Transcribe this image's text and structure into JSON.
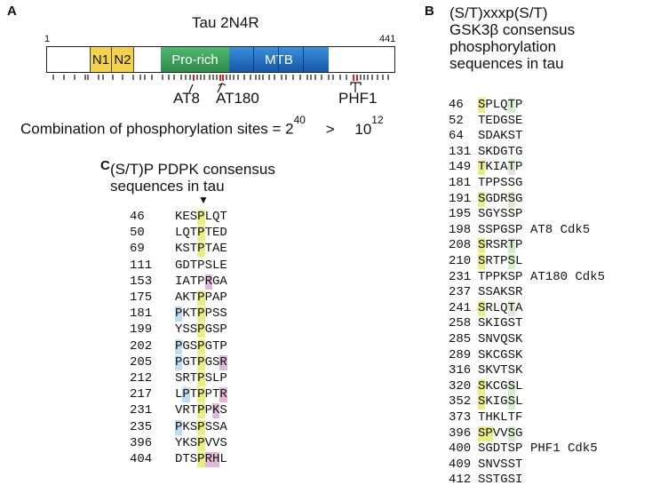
{
  "panelA": {
    "letter": "A",
    "title": "Tau 2N4R",
    "start": "1",
    "end": "441",
    "domains": [
      {
        "label": "N1",
        "color": "#f2d24c"
      },
      {
        "label": "N2",
        "color": "#f2d24c"
      },
      {
        "label": "Pro-rich",
        "color": "#3aa15a"
      },
      {
        "label": "MTB",
        "color": "#1f6fc0"
      }
    ],
    "epitopes": [
      "AT8",
      "AT180",
      "PHF1"
    ],
    "equation": {
      "text": "Combination of phosphorylation sites = 2",
      "exp1": "40",
      "gt": ">",
      "base2": "10",
      "exp2": "12"
    }
  },
  "panelB": {
    "letter": "B",
    "title_lines": [
      "(S/T)xxxp(S/T)",
      "GSK3β consensus",
      "phosphorylation",
      "sequences in tau"
    ],
    "rows": [
      {
        "num": "46",
        "seq": "SPLQTP",
        "hl": {
          "0": "y",
          "4": "g"
        },
        "note": ""
      },
      {
        "num": "52",
        "seq": "TEDGSE",
        "hl": {},
        "note": ""
      },
      {
        "num": "64",
        "seq": "SDAKST",
        "hl": {},
        "note": ""
      },
      {
        "num": "131",
        "seq": "SKDGTG",
        "hl": {},
        "note": ""
      },
      {
        "num": "149",
        "seq": "TKIATP",
        "hl": {
          "0": "y",
          "4": "g"
        },
        "note": ""
      },
      {
        "num": "181",
        "seq": "TPPSSG",
        "hl": {},
        "note": ""
      },
      {
        "num": "191",
        "seq": "SGDRSG",
        "hl": {
          "0": "y",
          "4": "g"
        },
        "note": ""
      },
      {
        "num": "195",
        "seq": "SGYSSP",
        "hl": {},
        "note": ""
      },
      {
        "num": "198",
        "seq": "SSPGSP",
        "hl": {},
        "note": "AT8 Cdk5"
      },
      {
        "num": "208",
        "seq": "SRSRTP",
        "hl": {
          "0": "y",
          "4": "g"
        },
        "note": ""
      },
      {
        "num": "210",
        "seq": "SRTPSL",
        "hl": {
          "0": "y",
          "4": "g"
        },
        "note": ""
      },
      {
        "num": "231",
        "seq": "TPPKSP",
        "hl": {},
        "note": "AT180 Cdk5"
      },
      {
        "num": "237",
        "seq": "SSAKSR",
        "hl": {},
        "note": ""
      },
      {
        "num": "241",
        "seq": "SRLQTA",
        "hl": {
          "0": "y",
          "4": "g"
        },
        "note": ""
      },
      {
        "num": "258",
        "seq": "SKIGST",
        "hl": {},
        "note": ""
      },
      {
        "num": "285",
        "seq": "SNVQSK",
        "hl": {},
        "note": ""
      },
      {
        "num": "289",
        "seq": "SKCGSK",
        "hl": {},
        "note": ""
      },
      {
        "num": "316",
        "seq": "SKVTSK",
        "hl": {},
        "note": ""
      },
      {
        "num": "320",
        "seq": "SKCGSL",
        "hl": {
          "0": "y",
          "4": "g"
        },
        "note": ""
      },
      {
        "num": "352",
        "seq": "SKIGSL",
        "hl": {
          "0": "y",
          "4": "g"
        },
        "note": ""
      },
      {
        "num": "373",
        "seq": "THKLTF",
        "hl": {},
        "note": ""
      },
      {
        "num": "396",
        "seq": "SPVVSG",
        "hl": {
          "0": "y",
          "1": "y",
          "4": "g"
        },
        "note": ""
      },
      {
        "num": "400",
        "seq": "SGDTSP",
        "hl": {},
        "note": "PHF1 Cdk5"
      },
      {
        "num": "409",
        "seq": "SNVSST",
        "hl": {},
        "note": ""
      },
      {
        "num": "412",
        "seq": "SSTGSI",
        "hl": {},
        "note": ""
      }
    ]
  },
  "panelC": {
    "letter": "C",
    "title_lines": [
      "(S/T)P PDPK consensus",
      "sequences in tau"
    ],
    "arrow": "▼",
    "rows": [
      {
        "num": "46",
        "seq": "KESPLQT",
        "hl": {
          "3": "y"
        }
      },
      {
        "num": "50",
        "seq": "LQTPTED",
        "hl": {
          "3": "y"
        }
      },
      {
        "num": "69",
        "seq": "KSTPTAE",
        "hl": {
          "3": "y"
        }
      },
      {
        "num": "111",
        "seq": "GDTPSLE",
        "hl": {}
      },
      {
        "num": "153",
        "seq": "IATPRGA",
        "hl": {
          "4": "p"
        }
      },
      {
        "num": "175",
        "seq": "AKTPPAP",
        "hl": {
          "3": "y"
        }
      },
      {
        "num": "181",
        "seq": "PKTPPSS",
        "hl": {
          "0": "b",
          "3": "y"
        }
      },
      {
        "num": "199",
        "seq": "YSSPGSP",
        "hl": {
          "3": "y"
        }
      },
      {
        "num": "202",
        "seq": "PGSPGTP",
        "hl": {
          "0": "b",
          "3": "y"
        }
      },
      {
        "num": "205",
        "seq": "PGTPGSR",
        "hl": {
          "0": "b",
          "3": "y",
          "6": "p"
        }
      },
      {
        "num": "212",
        "seq": "SRTPSLP",
        "hl": {
          "3": "y"
        }
      },
      {
        "num": "217",
        "seq": "LPTPPTR",
        "hl": {
          "1": "b",
          "3": "y",
          "6": "p"
        }
      },
      {
        "num": "231",
        "seq": "VRTPPKS",
        "hl": {
          "3": "y",
          "5": "p"
        }
      },
      {
        "num": "235",
        "seq": "PKSPSSA",
        "hl": {
          "0": "b",
          "3": "y"
        }
      },
      {
        "num": "396",
        "seq": "YKSPVVS",
        "hl": {
          "3": "y"
        }
      },
      {
        "num": "404",
        "seq": "DTSPRHL",
        "hl": {
          "3": "y",
          "4": "p",
          "5": "p"
        }
      }
    ]
  }
}
